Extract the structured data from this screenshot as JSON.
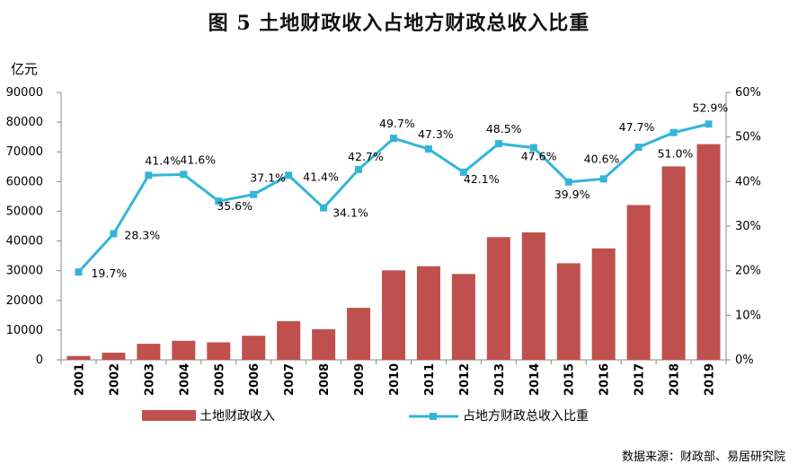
{
  "title": "图 5  土地财政收入占地方财政总收入比重",
  "unit_label": "亿元",
  "source": "数据来源：财政部、易居研究院",
  "chart_data": {
    "type": "bar+line",
    "categories": [
      "2001",
      "2002",
      "2003",
      "2004",
      "2005",
      "2006",
      "2007",
      "2008",
      "2009",
      "2010",
      "2011",
      "2012",
      "2013",
      "2014",
      "2015",
      "2016",
      "2017",
      "2018",
      "2019"
    ],
    "series": [
      {
        "name": "土地财政收入",
        "type": "bar",
        "axis": "left",
        "color": "#c0504d",
        "values": [
          1300,
          2400,
          5400,
          6400,
          5900,
          8100,
          13000,
          10300,
          17500,
          30100,
          31500,
          28900,
          41300,
          42900,
          32500,
          37500,
          52100,
          65100,
          72600
        ]
      },
      {
        "name": "占地方财政总收入比重",
        "type": "line",
        "axis": "right",
        "color": "#33b5d8",
        "values": [
          19.7,
          28.3,
          41.4,
          41.6,
          35.6,
          37.1,
          41.4,
          34.1,
          42.7,
          49.7,
          47.3,
          42.1,
          48.5,
          47.6,
          39.9,
          40.6,
          47.7,
          51.0,
          52.9
        ],
        "labels": [
          "19.7%",
          "28.3%",
          "41.4%",
          "41.6%",
          "35.6%",
          "37.1%",
          "41.4%",
          "34.1%",
          "42.7%",
          "49.7%",
          "47.3%",
          "42.1%",
          "48.5%",
          "47.6%",
          "39.9%",
          "40.6%",
          "47.7%",
          "51.0%",
          "52.9%"
        ]
      }
    ],
    "y_left": {
      "min": 0,
      "max": 90000,
      "step": 10000,
      "ticks": [
        "0",
        "10000",
        "20000",
        "30000",
        "40000",
        "50000",
        "60000",
        "70000",
        "80000",
        "90000"
      ]
    },
    "y_right": {
      "min": 0,
      "max": 60,
      "step": 10,
      "ticks": [
        "0%",
        "10%",
        "20%",
        "30%",
        "40%",
        "50%",
        "60%"
      ]
    },
    "legend_position": "bottom",
    "grid": false
  }
}
